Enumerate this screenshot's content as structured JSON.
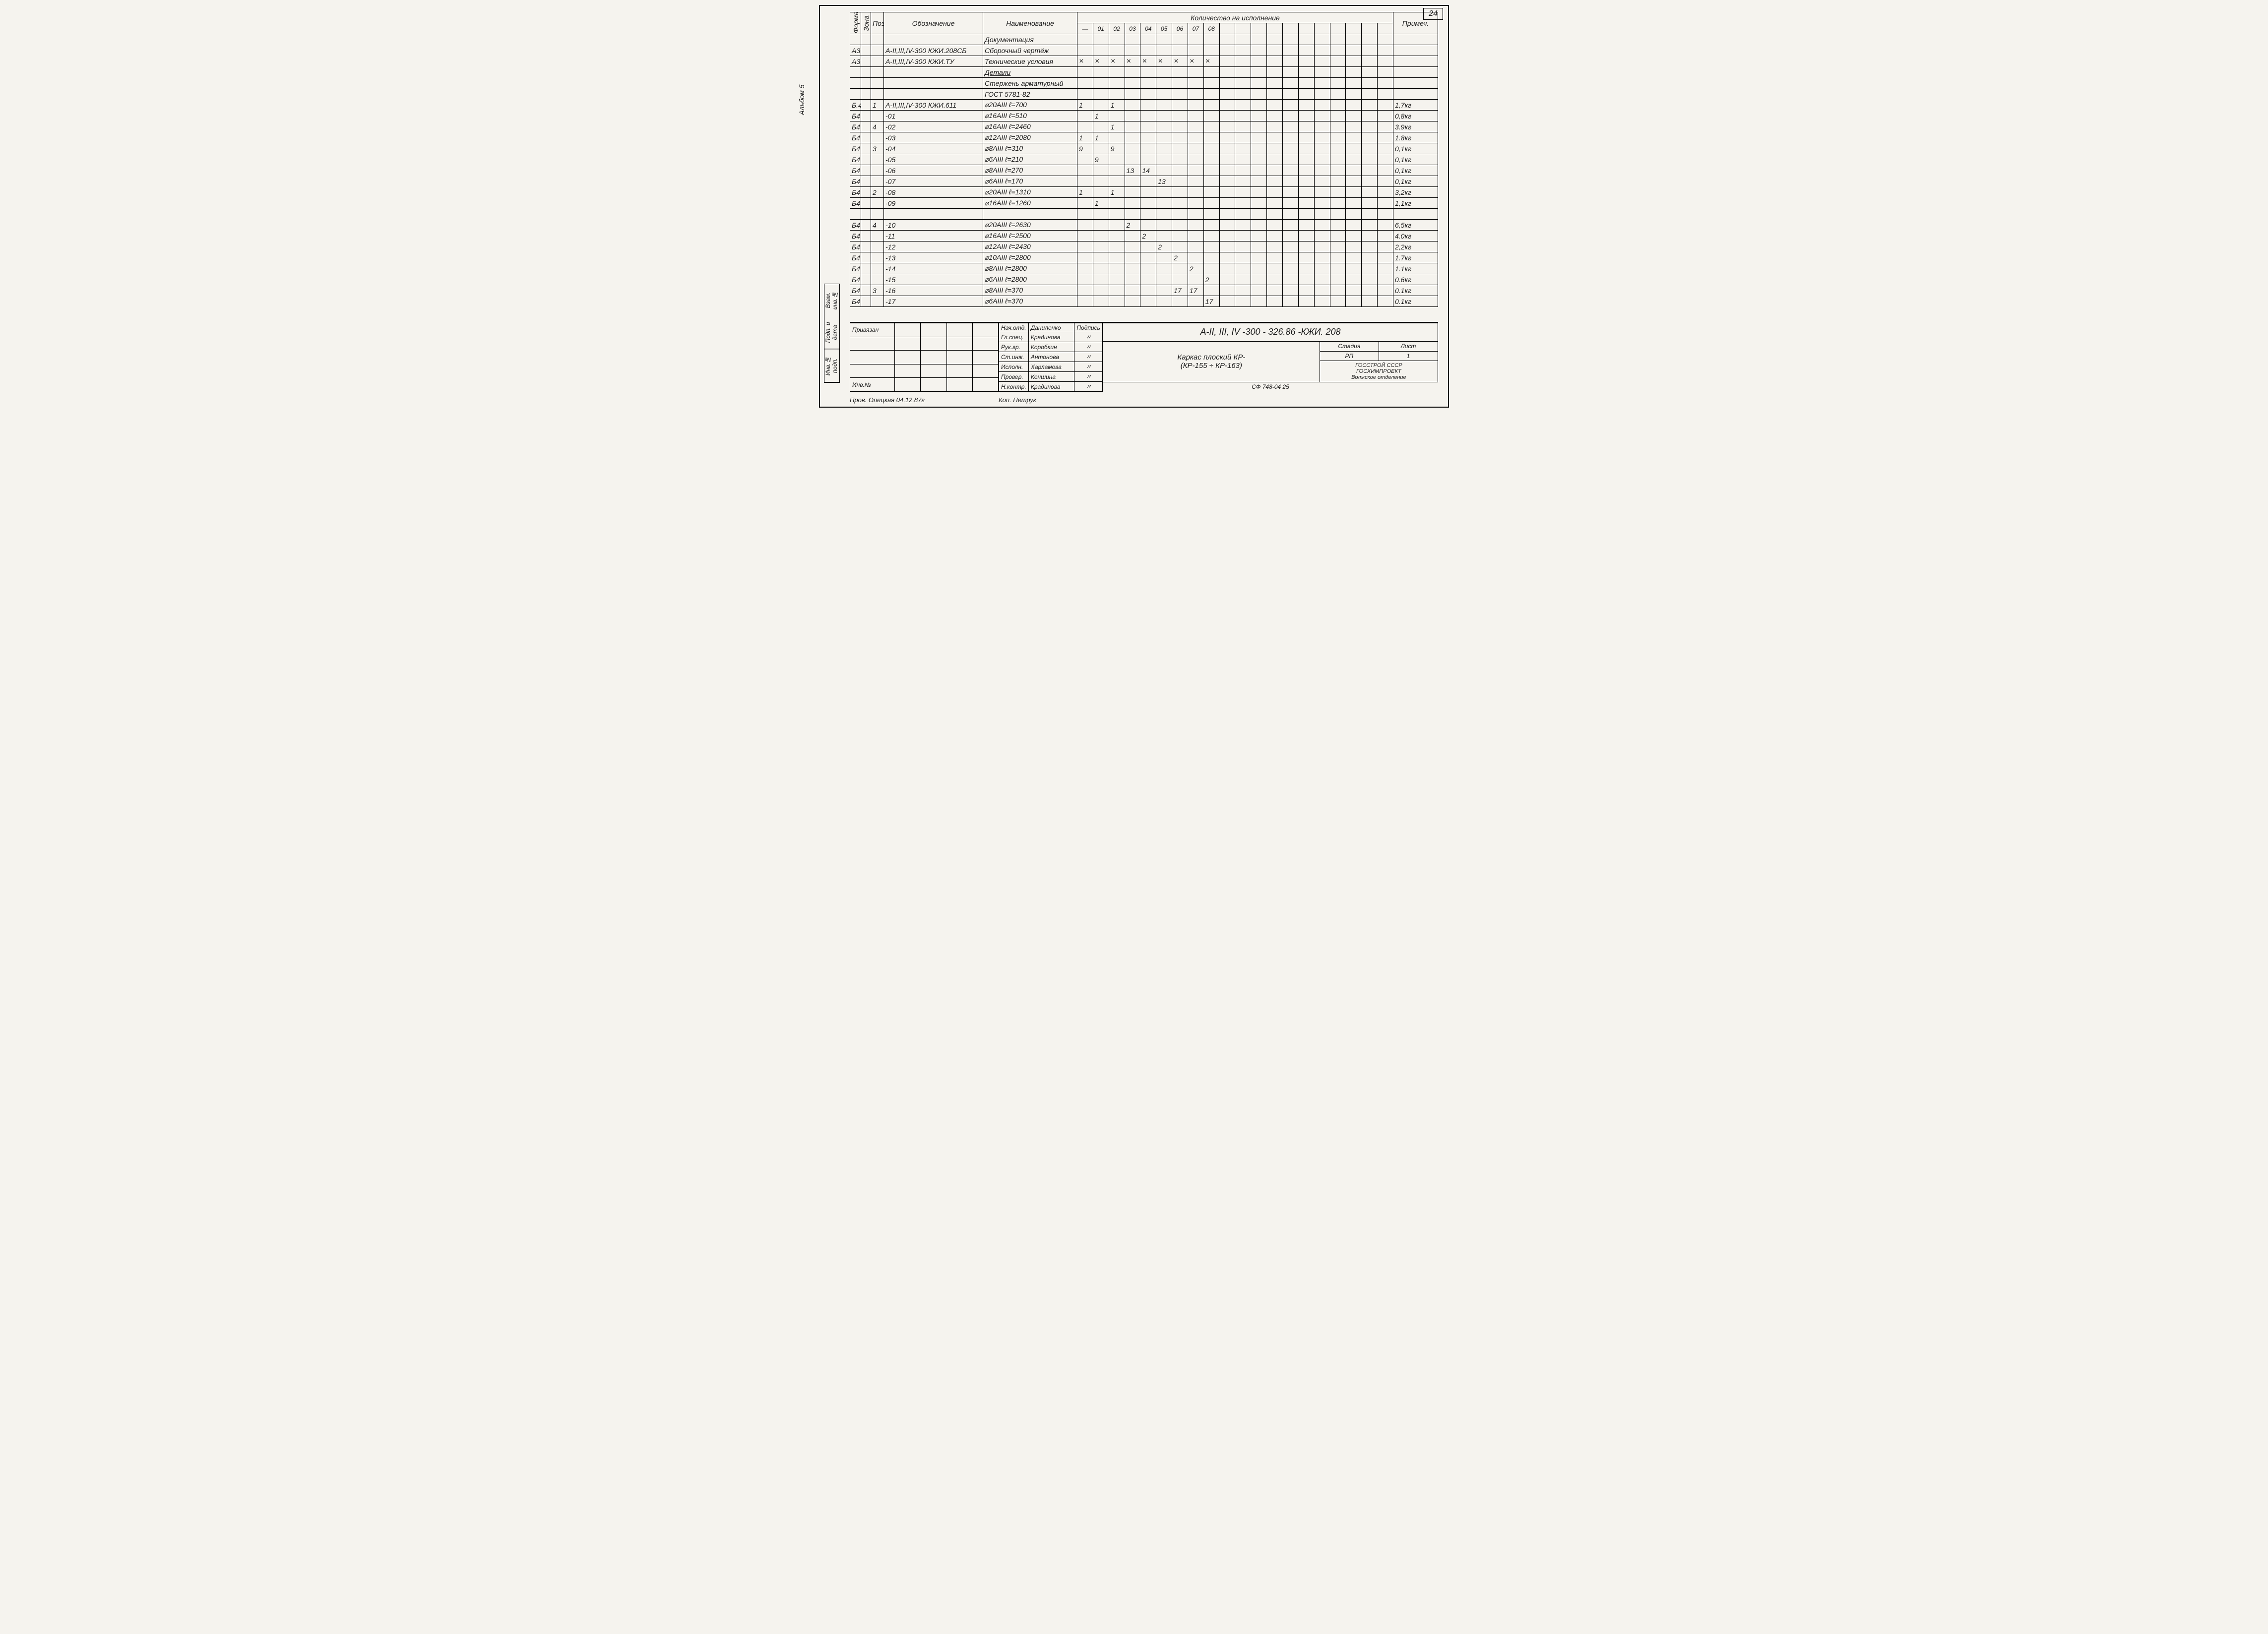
{
  "page_number": "24",
  "album_label": "Альбом 5",
  "left_strip": [
    "Инв.№ подп.",
    "Подп. и дата",
    "Взам. инв.№"
  ],
  "header": {
    "format": "Формат",
    "zone": "Зона",
    "pos": "Поз.",
    "designation": "Обозначение",
    "name": "Наименование",
    "qty_group": "Количество на исполнение",
    "qty_cols": [
      "—",
      "01",
      "02",
      "03",
      "04",
      "05",
      "06",
      "07",
      "08",
      "",
      "",
      "",
      "",
      "",
      "",
      "",
      "",
      "",
      "",
      ""
    ],
    "note": "Примеч."
  },
  "rows": [
    {
      "fmt": "",
      "zone": "",
      "pos": "",
      "desig": "",
      "name": "Документация",
      "q": [
        "",
        "",
        "",
        "",
        "",
        "",
        "",
        "",
        "",
        "",
        "",
        "",
        "",
        "",
        "",
        "",
        "",
        "",
        "",
        ""
      ],
      "note": "",
      "center": true
    },
    {
      "fmt": "А3",
      "zone": "",
      "pos": "",
      "desig": "А-II,III,IV-300   КЖИ.208СБ",
      "name": "Сборочный чертёж",
      "q": [
        "",
        "",
        "",
        "",
        "",
        "",
        "",
        "",
        "",
        "",
        "",
        "",
        "",
        "",
        "",
        "",
        "",
        "",
        "",
        ""
      ],
      "note": ""
    },
    {
      "fmt": "А3",
      "zone": "",
      "pos": "",
      "desig": "А-II,III,IV-300   КЖИ.ТУ",
      "name": "Технические условия",
      "q": [
        "×",
        "×",
        "×",
        "×",
        "×",
        "×",
        "×",
        "×",
        "×",
        "",
        "",
        "",
        "",
        "",
        "",
        "",
        "",
        "",
        "",
        ""
      ],
      "note": ""
    },
    {
      "fmt": "",
      "zone": "",
      "pos": "",
      "desig": "",
      "name": "Детали",
      "q": [
        "",
        "",
        "",
        "",
        "",
        "",
        "",
        "",
        "",
        "",
        "",
        "",
        "",
        "",
        "",
        "",
        "",
        "",
        "",
        ""
      ],
      "note": "",
      "center": true,
      "ul": true
    },
    {
      "fmt": "",
      "zone": "",
      "pos": "",
      "desig": "",
      "name": "Стержень арматурный",
      "q": [
        "",
        "",
        "",
        "",
        "",
        "",
        "",
        "",
        "",
        "",
        "",
        "",
        "",
        "",
        "",
        "",
        "",
        "",
        "",
        ""
      ],
      "note": ""
    },
    {
      "fmt": "",
      "zone": "",
      "pos": "",
      "desig": "",
      "name": "ГОСТ 5781-82",
      "q": [
        "",
        "",
        "",
        "",
        "",
        "",
        "",
        "",
        "",
        "",
        "",
        "",
        "",
        "",
        "",
        "",
        "",
        "",
        "",
        ""
      ],
      "note": "",
      "center": true
    },
    {
      "fmt": "Б.4",
      "zone": "",
      "pos": "1",
      "desig": "А-II,III,IV-300   КЖИ.611",
      "name": "⌀20АIII          ℓ=700",
      "q": [
        "1",
        "",
        "1",
        "",
        "",
        "",
        "",
        "",
        "",
        "",
        "",
        "",
        "",
        "",
        "",
        "",
        "",
        "",
        "",
        ""
      ],
      "note": "1,7кг"
    },
    {
      "fmt": "Б4",
      "zone": "",
      "pos": "",
      "desig": "-01",
      "name": "⌀16АIII          ℓ=510",
      "q": [
        "",
        "1",
        "",
        "",
        "",
        "",
        "",
        "",
        "",
        "",
        "",
        "",
        "",
        "",
        "",
        "",
        "",
        "",
        "",
        ""
      ],
      "note": "0,8кг",
      "dright": true
    },
    {
      "fmt": "Б4",
      "zone": "",
      "pos": "4",
      "desig": "-02",
      "name": "⌀16АIII          ℓ=2460",
      "q": [
        "",
        "",
        "1",
        "",
        "",
        "",
        "",
        "",
        "",
        "",
        "",
        "",
        "",
        "",
        "",
        "",
        "",
        "",
        "",
        ""
      ],
      "note": "3.9кг",
      "dright": true
    },
    {
      "fmt": "Б4",
      "zone": "",
      "pos": "",
      "desig": "-03",
      "name": "⌀12АIII          ℓ=2080",
      "q": [
        "1",
        "1",
        "",
        "",
        "",
        "",
        "",
        "",
        "",
        "",
        "",
        "",
        "",
        "",
        "",
        "",
        "",
        "",
        "",
        ""
      ],
      "note": "1.8кг",
      "dright": true
    },
    {
      "fmt": "Б4",
      "zone": "",
      "pos": "3",
      "desig": "-04",
      "name": "⌀8АIII           ℓ=310",
      "q": [
        "9",
        "",
        "9",
        "",
        "",
        "",
        "",
        "",
        "",
        "",
        "",
        "",
        "",
        "",
        "",
        "",
        "",
        "",
        "",
        ""
      ],
      "note": "0,1кг",
      "dright": true
    },
    {
      "fmt": "Б4",
      "zone": "",
      "pos": "",
      "desig": "-05",
      "name": "⌀6АIII           ℓ=210",
      "q": [
        "",
        "9",
        "",
        "",
        "",
        "",
        "",
        "",
        "",
        "",
        "",
        "",
        "",
        "",
        "",
        "",
        "",
        "",
        "",
        ""
      ],
      "note": "0,1кг",
      "dright": true
    },
    {
      "fmt": "Б4",
      "zone": "",
      "pos": "",
      "desig": "-06",
      "name": "⌀8АIII           ℓ=270",
      "q": [
        "",
        "",
        "",
        "13",
        "14",
        "",
        "",
        "",
        "",
        "",
        "",
        "",
        "",
        "",
        "",
        "",
        "",
        "",
        "",
        ""
      ],
      "note": "0,1кг",
      "dright": true
    },
    {
      "fmt": "Б4",
      "zone": "",
      "pos": "",
      "desig": "-07",
      "name": "⌀6АIII           ℓ=170",
      "q": [
        "",
        "",
        "",
        "",
        "",
        "13",
        "",
        "",
        "",
        "",
        "",
        "",
        "",
        "",
        "",
        "",
        "",
        "",
        "",
        ""
      ],
      "note": "0,1кг",
      "dright": true
    },
    {
      "fmt": "Б4",
      "zone": "",
      "pos": "2",
      "desig": "-08",
      "name": "⌀20АIII          ℓ=1310",
      "q": [
        "1",
        "",
        "1",
        "",
        "",
        "",
        "",
        "",
        "",
        "",
        "",
        "",
        "",
        "",
        "",
        "",
        "",
        "",
        "",
        ""
      ],
      "note": "3,2кг",
      "dright": true
    },
    {
      "fmt": "Б4",
      "zone": "",
      "pos": "",
      "desig": "-09",
      "name": "⌀16АIII          ℓ=1260",
      "q": [
        "",
        "1",
        "",
        "",
        "",
        "",
        "",
        "",
        "",
        "",
        "",
        "",
        "",
        "",
        "",
        "",
        "",
        "",
        "",
        ""
      ],
      "note": "1,1кг",
      "dright": true
    },
    {
      "fmt": "",
      "zone": "",
      "pos": "",
      "desig": "",
      "name": "",
      "q": [
        "",
        "",
        "",
        "",
        "",
        "",
        "",
        "",
        "",
        "",
        "",
        "",
        "",
        "",
        "",
        "",
        "",
        "",
        "",
        ""
      ],
      "note": ""
    },
    {
      "fmt": "Б4",
      "zone": "",
      "pos": "4",
      "desig": "-10",
      "name": "⌀20АIII          ℓ=2630",
      "q": [
        "",
        "",
        "",
        "2",
        "",
        "",
        "",
        "",
        "",
        "",
        "",
        "",
        "",
        "",
        "",
        "",
        "",
        "",
        "",
        ""
      ],
      "note": "6,5кг",
      "dright": true
    },
    {
      "fmt": "Б4",
      "zone": "",
      "pos": "",
      "desig": "-11",
      "name": "⌀16АIII          ℓ=2500",
      "q": [
        "",
        "",
        "",
        "",
        "2",
        "",
        "",
        "",
        "",
        "",
        "",
        "",
        "",
        "",
        "",
        "",
        "",
        "",
        "",
        ""
      ],
      "note": "4.0кг",
      "dright": true
    },
    {
      "fmt": "Б4",
      "zone": "",
      "pos": "",
      "desig": "-12",
      "name": "⌀12АIII          ℓ=2430",
      "q": [
        "",
        "",
        "",
        "",
        "",
        "2",
        "",
        "",
        "",
        "",
        "",
        "",
        "",
        "",
        "",
        "",
        "",
        "",
        "",
        ""
      ],
      "note": "2,2кг",
      "dright": true
    },
    {
      "fmt": "Б4",
      "zone": "",
      "pos": "",
      "desig": "-13",
      "name": "⌀10АIII          ℓ=2800",
      "q": [
        "",
        "",
        "",
        "",
        "",
        "",
        "2",
        "",
        "",
        "",
        "",
        "",
        "",
        "",
        "",
        "",
        "",
        "",
        "",
        ""
      ],
      "note": "1.7кг",
      "dright": true
    },
    {
      "fmt": "Б4",
      "zone": "",
      "pos": "",
      "desig": "-14",
      "name": "⌀8АIII           ℓ=2800",
      "q": [
        "",
        "",
        "",
        "",
        "",
        "",
        "",
        "2",
        "",
        "",
        "",
        "",
        "",
        "",
        "",
        "",
        "",
        "",
        "",
        ""
      ],
      "note": "1.1кг",
      "dright": true
    },
    {
      "fmt": "Б4",
      "zone": "",
      "pos": "",
      "desig": "-15",
      "name": "⌀6АIII           ℓ=2800",
      "q": [
        "",
        "",
        "",
        "",
        "",
        "",
        "",
        "",
        "2",
        "",
        "",
        "",
        "",
        "",
        "",
        "",
        "",
        "",
        "",
        ""
      ],
      "note": "0.6кг",
      "dright": true
    },
    {
      "fmt": "Б4",
      "zone": "",
      "pos": "3",
      "desig": "-16",
      "name": "⌀8АIII           ℓ=370",
      "q": [
        "",
        "",
        "",
        "",
        "",
        "",
        "17",
        "17",
        "",
        "",
        "",
        "",
        "",
        "",
        "",
        "",
        "",
        "",
        "",
        ""
      ],
      "note": "0.1кг",
      "dright": true
    },
    {
      "fmt": "Б4",
      "zone": "",
      "pos": "",
      "desig": "-17",
      "name": "⌀6АIII           ℓ=370",
      "q": [
        "",
        "",
        "",
        "",
        "",
        "",
        "",
        "",
        "17",
        "",
        "",
        "",
        "",
        "",
        "",
        "",
        "",
        "",
        "",
        ""
      ],
      "note": "0.1кг",
      "dright": true
    }
  ],
  "title_block": {
    "left_rows": [
      [
        "Привязан",
        "",
        "",
        "",
        ""
      ],
      [
        "",
        "",
        "",
        "",
        ""
      ],
      [
        "",
        "",
        "",
        "",
        ""
      ],
      [
        "",
        "",
        "",
        "",
        ""
      ],
      [
        "Инв.№",
        "",
        "",
        "",
        ""
      ]
    ],
    "mid_rows": [
      [
        "Нач.отд.",
        "Даниленко",
        "Подпись"
      ],
      [
        "Гл.спец.",
        "Крадинова",
        "〃"
      ],
      [
        "Рук.гр.",
        "Коробкин",
        "〃"
      ],
      [
        "Ст.инж.",
        "Антонова",
        "〃"
      ],
      [
        "Исполн.",
        "Харламова",
        "〃"
      ],
      [
        "Провер.",
        "Коншина",
        "〃"
      ],
      [
        "Н.контр.",
        "Крадинова",
        "〃"
      ]
    ],
    "doc_code": "А-II, III, IV -300 - 326.86   -КЖИ. 208",
    "title1": "Каркас плоский КР-",
    "title2": "(КР-155 ÷ КР-163)",
    "stage_hdr": [
      "Стадия",
      "Лист",
      "Листов"
    ],
    "stage_row": [
      "РП",
      "",
      "1"
    ],
    "org": [
      "ГОССТРОЙ СССР",
      "ГОСХИМПРОЕКТ",
      "Волжское отделение"
    ],
    "form_ref": "СФ 748-04   25"
  },
  "footer_left": "Пров. Опецкая 04.12.87г",
  "footer_mid": "Коп. Петрук"
}
